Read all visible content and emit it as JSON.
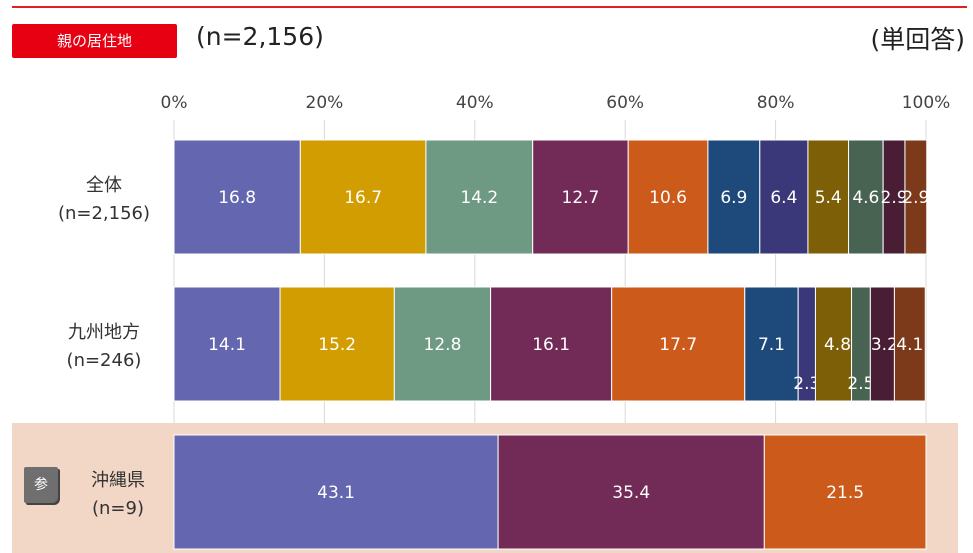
{
  "header": {
    "tag": "親の居住地",
    "n_label": "(n=2,156)",
    "answer_type": "(単回答)",
    "ref_badge": "参"
  },
  "chart_data": {
    "type": "bar",
    "orientation": "horizontal",
    "stacked": true,
    "xlim": [
      0,
      100
    ],
    "x_ticks": [
      "0%",
      "20%",
      "40%",
      "60%",
      "80%",
      "100%"
    ],
    "grid": true,
    "colors": [
      "#6466b0",
      "#d29d00",
      "#6e9983",
      "#722a57",
      "#cc5a1a",
      "#1d4a7a",
      "#3a3878",
      "#7d5f07",
      "#486352",
      "#491d33",
      "#7c3a1a"
    ],
    "rows": [
      {
        "label": "全体",
        "n": "(n=2,156)",
        "values": [
          16.8,
          16.7,
          14.2,
          12.7,
          10.6,
          6.9,
          6.4,
          5.4,
          4.6,
          2.9,
          2.9
        ],
        "value_labels": [
          "16.8",
          "16.7",
          "14.2",
          "12.7",
          "10.6",
          "6.9",
          "6.4",
          "5.4",
          "4.6",
          "2.9",
          "2.9"
        ],
        "color_index": [
          0,
          1,
          2,
          3,
          4,
          5,
          6,
          7,
          8,
          9,
          10
        ]
      },
      {
        "label": "九州地方",
        "n": "(n=246)",
        "values": [
          14.1,
          15.2,
          12.8,
          16.1,
          17.7,
          7.1,
          2.3,
          4.8,
          2.5,
          3.2,
          4.1
        ],
        "value_labels": [
          "14.1",
          "15.2",
          "12.8",
          "16.1",
          "17.7",
          "7.1",
          "2.3",
          "4.8",
          "2.5",
          "3.2",
          "4.1"
        ],
        "color_index": [
          0,
          1,
          2,
          3,
          4,
          5,
          6,
          7,
          8,
          9,
          10
        ]
      },
      {
        "label": "沖縄県",
        "n": "(n=9)",
        "values": [
          43.1,
          35.4,
          21.5
        ],
        "value_labels": [
          "43.1",
          "35.4",
          "21.5"
        ],
        "color_index": [
          0,
          3,
          4
        ]
      }
    ]
  }
}
